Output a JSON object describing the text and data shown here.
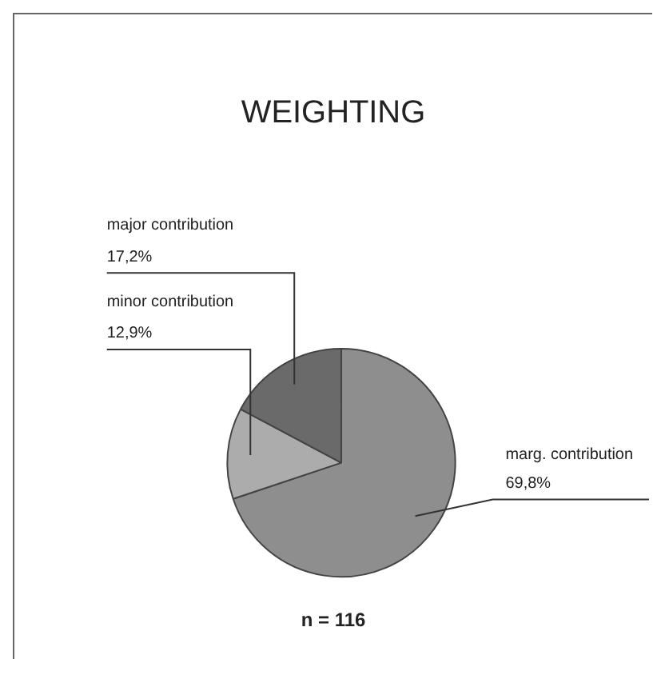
{
  "chart_data": {
    "type": "pie",
    "title": "WEIGHTING",
    "categories": [
      "marg. contribution",
      "minor contribution",
      "major contribution"
    ],
    "values": [
      69.8,
      12.9,
      17.2
    ],
    "value_labels": [
      "69,8%",
      "12,9%",
      "17,2%"
    ],
    "colors": [
      "#8e8e8e",
      "#acacac",
      "#6a6a6a"
    ],
    "annotations": [
      "n = 116"
    ],
    "legend": false
  }
}
